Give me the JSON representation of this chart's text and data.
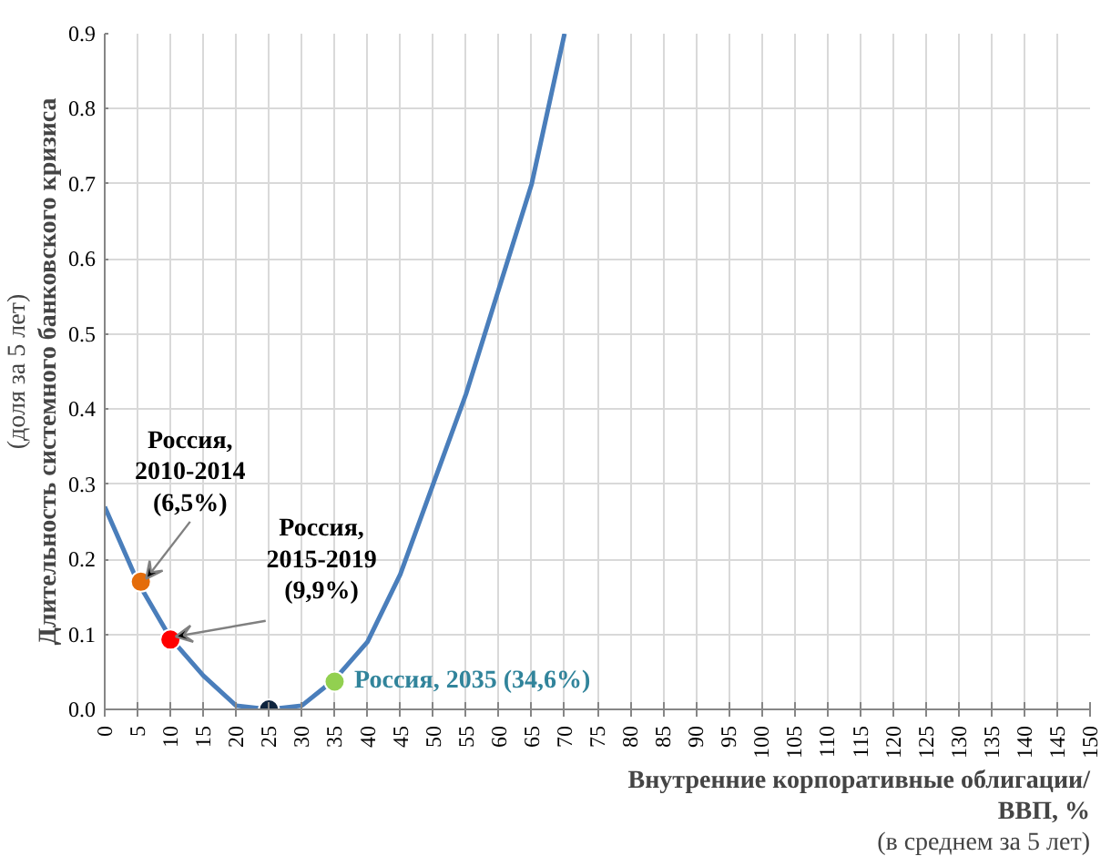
{
  "chart_data": {
    "type": "line",
    "xlabel": "Внутренние корпоративные облигации/\nВВП, %\n(в среднем за 5 лет)",
    "ylabel": "Длительность системного банковского кризиса\n(доля за 5 лет)",
    "series": [
      {
        "color": "#4a7ebb",
        "x": [
          0,
          5,
          10,
          15,
          20,
          25,
          30,
          35,
          40,
          45,
          50,
          55,
          60,
          65,
          70
        ],
        "values": [
          0.27,
          0.17,
          0.095,
          0.045,
          0.005,
          0.0,
          0.005,
          0.04,
          0.09,
          0.18,
          0.3,
          0.42,
          0.56,
          0.7,
          0.9
        ]
      },
      {
        "type": "scatter",
        "marker": "circle",
        "colors": [
          "#e46c0a",
          "#ff0000",
          "#0f243e",
          "#92d050"
        ],
        "x": [
          5.5,
          10,
          25,
          35
        ],
        "values": [
          0.17,
          0.093,
          0.0,
          0.037
        ]
      }
    ],
    "annotations": [
      {
        "text": "Россия,\n2010-2014\n(6,5%)",
        "x": 5.5,
        "y": 0.17
      },
      {
        "text": "Россия,\n2015-2019\n(9,9%)",
        "x": 10,
        "y": 0.093
      },
      {
        "text": "Россия, 2035 (34,6%)",
        "x": 35,
        "y": 0.037
      }
    ],
    "xlim": [
      0,
      150
    ],
    "xticks": [
      0,
      5,
      10,
      15,
      20,
      25,
      30,
      35,
      40,
      45,
      50,
      55,
      60,
      65,
      70,
      75,
      80,
      85,
      90,
      95,
      100,
      105,
      110,
      115,
      120,
      125,
      130,
      135,
      140,
      145,
      150
    ],
    "ylim": [
      0,
      0.9
    ],
    "yticks": [
      {
        "value": 0,
        "label": "0.0"
      },
      0.1,
      0.2,
      0.3,
      0.4,
      0.5,
      0.6,
      0.7,
      0.8,
      0.9
    ],
    "grid": true
  }
}
